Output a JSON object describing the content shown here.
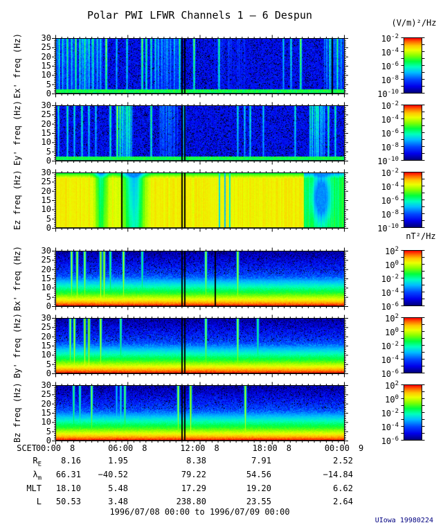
{
  "title": "Polar PWI LFWR Channels 1 — 6 Despun",
  "footer": "1996/07/08 00:00 to 1996/07/09 00:00",
  "credit": "UIowa 19980224",
  "chart_data": {
    "type": "heatmap",
    "title": "Polar PWI LFWR Channels 1 — 6 Despun",
    "subtitle": "1996/07/08 00:00 to 1996/07/09 00:00",
    "xaxis": {
      "label": "SCET",
      "lim_hours": [
        0,
        24
      ],
      "major_tick_hours": 6,
      "minor_tick_minutes": 30,
      "ticks": [
        {
          "time": "00:00",
          "day": "8",
          "x": 0
        },
        {
          "time": "06:00",
          "day": "8",
          "x": 0.25
        },
        {
          "time": "12:00",
          "day": "8",
          "x": 0.5
        },
        {
          "time": "18:00",
          "day": "8",
          "x": 0.75
        },
        {
          "time": "00:00",
          "day": "9",
          "x": 1
        }
      ]
    },
    "yaxis": {
      "lim": [
        0,
        30
      ],
      "unit": "Hz",
      "ticks": [
        "0",
        "5",
        "10",
        "15",
        "20",
        "25",
        "30"
      ]
    },
    "colorbars": {
      "electric": {
        "unit": "(V/m)²/Hz",
        "labels": [
          {
            "m": "10",
            "e": "-2"
          },
          {
            "m": "10",
            "e": "-4"
          },
          {
            "m": "10",
            "e": "-6"
          },
          {
            "m": "10",
            "e": "-8"
          },
          {
            "m": "10",
            "e": "-10"
          }
        ]
      },
      "magnetic": {
        "unit": "nT²/Hz",
        "labels": [
          {
            "m": "10",
            "e": "2"
          },
          {
            "m": "10",
            "e": "0"
          },
          {
            "m": "10",
            "e": "-2"
          },
          {
            "m": "10",
            "e": "-4"
          },
          {
            "m": "10",
            "e": "-6"
          }
        ]
      }
    },
    "panels": [
      {
        "id": "ex",
        "ylabel": "Ex' freq (Hz)",
        "cb": "electric",
        "desc": "Low blue background with impulsive broadband bursts, strongest 00-04 UT; green band at lowest frequencies",
        "paint": {
          "style": "e",
          "seed": 11,
          "streaks": [
            [
              0.012,
              0.55
            ],
            [
              0.025,
              0.5
            ],
            [
              0.04,
              0.62
            ],
            [
              0.055,
              0.5
            ],
            [
              0.07,
              0.68
            ],
            [
              0.085,
              0.55
            ],
            [
              0.1,
              0.6
            ],
            [
              0.115,
              0.5
            ],
            [
              0.13,
              0.58
            ],
            [
              0.145,
              0.48
            ],
            [
              0.175,
              0.75
            ],
            [
              0.21,
              0.46
            ],
            [
              0.247,
              0.52
            ],
            [
              0.3,
              0.7
            ],
            [
              0.315,
              0.62
            ],
            [
              0.33,
              0.55
            ],
            [
              0.345,
              0.5
            ],
            [
              0.43,
              0.6
            ],
            [
              0.48,
              0.68
            ],
            [
              0.567,
              0.6
            ],
            [
              0.79,
              0.46
            ],
            [
              0.815,
              0.5
            ],
            [
              0.85,
              0.7
            ],
            [
              0.95,
              0.55
            ],
            [
              0.975,
              0.62
            ]
          ],
          "washes": [
            [
              0.0,
              0.165,
              0.3
            ],
            [
              0.35,
              0.425,
              0.3
            ],
            [
              0.55,
              0.66,
              0.18
            ],
            [
              0.93,
              1.0,
              0.3
            ]
          ],
          "gaps": [
            0.437,
            0.447,
            0.957
          ]
        }
      },
      {
        "id": "ey",
        "ylabel": "Ey' freq (Hz)",
        "cb": "electric",
        "desc": "Similar impulsive bursts over low background; bright patch near 05 UT and near 22 UT",
        "paint": {
          "style": "e",
          "seed": 23,
          "streaks": [
            [
              0.01,
              0.5
            ],
            [
              0.04,
              0.56
            ],
            [
              0.065,
              0.5
            ],
            [
              0.09,
              0.56
            ],
            [
              0.115,
              0.5
            ],
            [
              0.14,
              0.46
            ],
            [
              0.19,
              0.6
            ],
            [
              0.213,
              0.78
            ],
            [
              0.222,
              0.66
            ],
            [
              0.33,
              0.62
            ],
            [
              0.445,
              0.72
            ],
            [
              0.63,
              0.5
            ],
            [
              0.655,
              0.46
            ],
            [
              0.675,
              0.52
            ],
            [
              0.72,
              0.46
            ],
            [
              0.83,
              0.5
            ],
            [
              0.945,
              0.62
            ],
            [
              0.97,
              0.56
            ]
          ],
          "washes": [
            [
              0.228,
              0.268,
              0.42
            ],
            [
              0.36,
              0.425,
              0.28
            ],
            [
              0.88,
              0.935,
              0.38
            ]
          ],
          "gaps": [
            0.437,
            0.447
          ]
        }
      },
      {
        "id": "ez",
        "ylabel": "Ez freq (Hz)",
        "cb": "electric",
        "desc": "Intense broadband yellow emission all day with green dropouts near 04 and 06-07 UT and a cyan depression near 22 UT",
        "paint": {
          "style": "z",
          "seed": 37,
          "dips": [
            [
              0.158,
              0.022,
              0.28
            ],
            [
              0.27,
              0.035,
              0.42
            ]
          ],
          "blob": [
            0.92,
            0.45,
            0.03,
            0.42,
            0.38
          ],
          "washes": [
            [
              0.86,
              1.0,
              -0.22
            ]
          ],
          "cools": [
            [
              0.565,
              0.42
            ],
            [
              0.585,
              0.38
            ],
            [
              0.602,
              0.45
            ]
          ],
          "gaps": [
            0.228,
            0.437,
            0.447
          ]
        }
      },
      {
        "id": "bx",
        "ylabel": "Bx' freq (Hz)",
        "cb": "magnetic",
        "desc": "Magnetic noise strongest at low frequency (red/yellow below ~5 Hz fading to blue at 30 Hz) with narrow bursts 01-06 UT",
        "paint": {
          "style": "b",
          "seed": 51,
          "streaks": [
            [
              0.055,
              0.78
            ],
            [
              0.075,
              0.82
            ],
            [
              0.1,
              0.76
            ],
            [
              0.155,
              0.86
            ],
            [
              0.168,
              0.84
            ],
            [
              0.19,
              0.62
            ],
            [
              0.235,
              0.8
            ],
            [
              0.3,
              0.6
            ],
            [
              0.52,
              0.76
            ],
            [
              0.63,
              0.8
            ]
          ],
          "gaps": [
            0.437,
            0.447,
            0.552
          ]
        }
      },
      {
        "id": "by",
        "ylabel": "By' freq (Hz)",
        "cb": "magnetic",
        "desc": "Same falling spectrum as Bx' with burst lines in the first quarter of the day",
        "paint": {
          "style": "b",
          "seed": 67,
          "streaks": [
            [
              0.05,
              0.76
            ],
            [
              0.065,
              0.82
            ],
            [
              0.1,
              0.86
            ],
            [
              0.115,
              0.88
            ],
            [
              0.155,
              0.8
            ],
            [
              0.225,
              0.62
            ],
            [
              0.52,
              0.72
            ],
            [
              0.63,
              0.76
            ],
            [
              0.7,
              0.6
            ]
          ],
          "gaps": [
            0.437,
            0.447
          ]
        }
      },
      {
        "id": "bz",
        "ylabel": "Bz freq (Hz)",
        "cb": "magnetic",
        "desc": "Falling magnetic spectrum with sparse burst lines near 02, 03, 06, 10, 11 and 16 UT",
        "paint": {
          "style": "b",
          "seed": 83,
          "streaks": [
            [
              0.063,
              0.62
            ],
            [
              0.085,
              0.56
            ],
            [
              0.125,
              0.72
            ],
            [
              0.21,
              0.44
            ],
            [
              0.225,
              0.52
            ],
            [
              0.24,
              0.66
            ],
            [
              0.425,
              0.78
            ],
            [
              0.467,
              0.86
            ],
            [
              0.657,
              0.82
            ]
          ],
          "gaps": [
            0.437,
            0.447
          ]
        }
      }
    ],
    "ephemeris": {
      "rows": [
        {
          "base": "R",
          "sub": "E",
          "values": [
            "8.16",
            "1.95",
            "8.38",
            "7.91",
            "2.52"
          ]
        },
        {
          "base": "λ",
          "sub": "m",
          "values": [
            "66.31",
            "−40.52",
            "79.22",
            "54.56",
            "−14.84"
          ]
        },
        {
          "base": "MLT",
          "sub": "",
          "values": [
            "18.10",
            "5.48",
            "17.29",
            "19.20",
            "6.62"
          ]
        },
        {
          "base": "L",
          "sub": "",
          "values": [
            "50.53",
            "3.48",
            "238.80",
            "23.55",
            "2.64"
          ]
        }
      ]
    }
  }
}
